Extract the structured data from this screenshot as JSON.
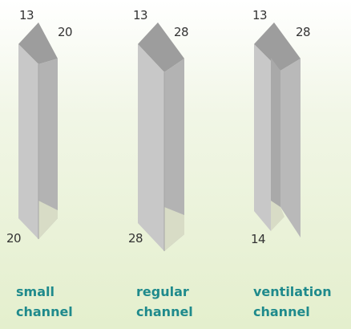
{
  "colors": {
    "label_text": "#1f8a8c",
    "dimension_text": "#333333",
    "background_top": "#ffffff",
    "background_bottom": "#e4efcd"
  },
  "channels": [
    {
      "top_left_dim": "13",
      "top_right_dim": "20",
      "bottom_dim": "20",
      "label_line1": "small",
      "label_line2": "channel"
    },
    {
      "top_left_dim": "13",
      "top_right_dim": "28",
      "bottom_dim": "28",
      "label_line1": "regular",
      "label_line2": "channel"
    },
    {
      "top_left_dim": "13",
      "top_right_dim": "28",
      "bottom_dim": "14",
      "label_line1": "ventilation",
      "label_line2": "channel"
    }
  ]
}
